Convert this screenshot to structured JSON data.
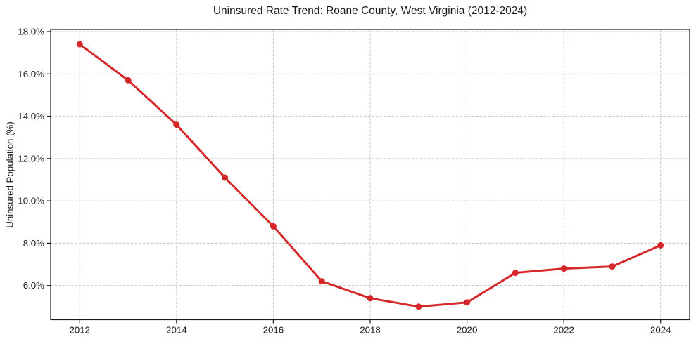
{
  "figure": {
    "background": "#ffffff"
  },
  "chart_data": {
    "type": "line",
    "title": "Uninsured Rate Trend: Roane County, West Virginia (2012-2024)",
    "xlabel": "",
    "ylabel": "Uninsured Population (%)",
    "x": [
      2012,
      2013,
      2014,
      2015,
      2016,
      2017,
      2018,
      2019,
      2020,
      2021,
      2022,
      2023,
      2024
    ],
    "series": [
      {
        "name": "Uninsured rate",
        "color": "#d62728",
        "values": [
          17.4,
          15.7,
          13.6,
          11.1,
          8.8,
          6.2,
          5.4,
          5.0,
          5.2,
          6.6,
          6.8,
          6.9,
          7.9
        ]
      }
    ],
    "marker": "circle",
    "xlim": [
      2011.4,
      2024.6
    ],
    "ylim": [
      4.38,
      18.1
    ],
    "xticks": {
      "values": [
        2012,
        2014,
        2016,
        2018,
        2020,
        2022,
        2024
      ],
      "labels": [
        "2012",
        "2014",
        "2016",
        "2018",
        "2020",
        "2022",
        "2024"
      ]
    },
    "yticks": {
      "values": [
        6,
        8,
        10,
        12,
        14,
        16,
        18
      ],
      "labels": [
        "6.0%",
        "8.0%",
        "10.0%",
        "12.0%",
        "14.0%",
        "16.0%",
        "18.0%"
      ]
    },
    "grid": {
      "show": true,
      "style": "dashed",
      "color": "#c6c6c6"
    },
    "legend": {
      "show": false
    },
    "colors": {
      "line": "#d62728",
      "axis": "#1a1a1a",
      "text": "#1a1a1a"
    }
  }
}
